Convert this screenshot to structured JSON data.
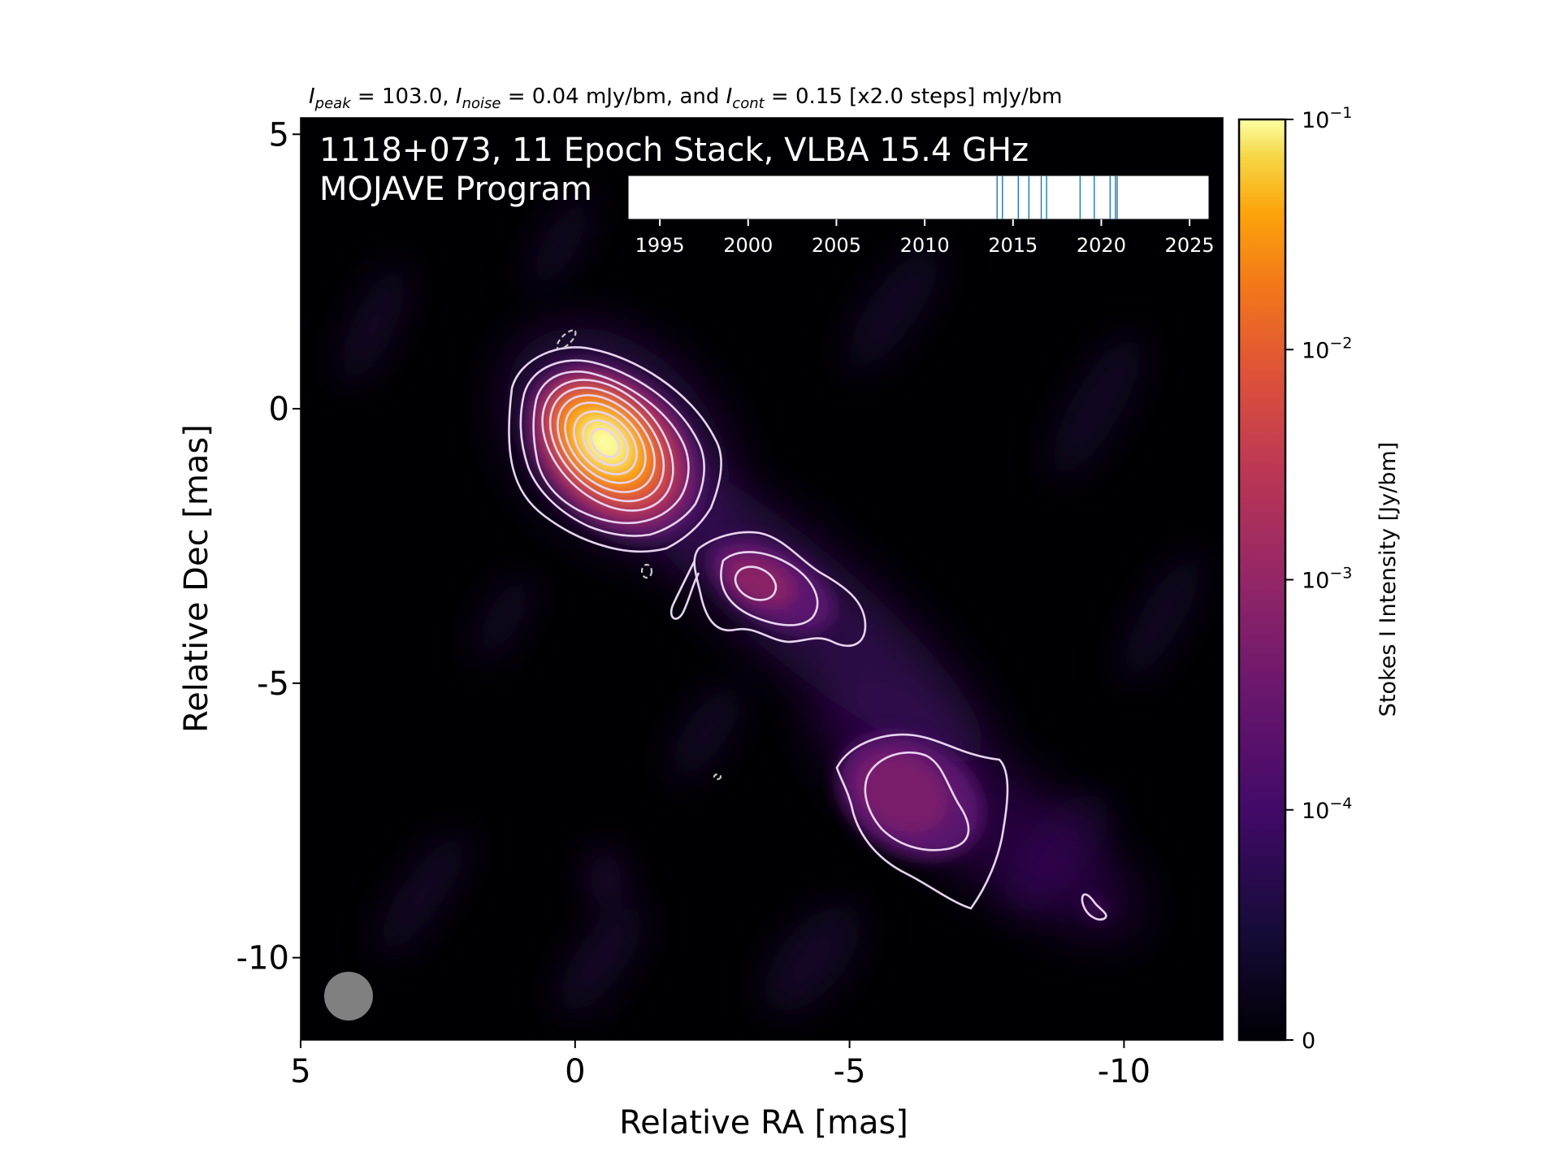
{
  "chart_data": {
    "type": "heatmap",
    "title_parts": {
      "i1": "I",
      "s1": "peak",
      "t1": " = 103.0, ",
      "i2": "I",
      "s2": "noise",
      "t2": " = 0.04 mJy/bm, and ",
      "i3": "I",
      "s3": "cont",
      "t3": " = 0.15 [x2.0 steps] mJy/bm"
    },
    "annotation_line1": "1118+073, 11 Epoch Stack, VLBA 15.4 GHz",
    "annotation_line2": "MOJAVE Program",
    "xlabel": "Relative RA [mas]",
    "ylabel": "Relative Dec [mas]",
    "xlim": [
      5,
      -11.8
    ],
    "ylim": [
      -11.5,
      5.3
    ],
    "xticks": [
      {
        "value": 5,
        "label": "5"
      },
      {
        "value": 0,
        "label": "0"
      },
      {
        "value": -5,
        "label": "-5"
      },
      {
        "value": -10,
        "label": "-10"
      }
    ],
    "yticks": [
      {
        "value": 5,
        "label": "5"
      },
      {
        "value": 0,
        "label": "0"
      },
      {
        "value": -5,
        "label": "-5"
      },
      {
        "value": -10,
        "label": "-10"
      }
    ],
    "colormap": "inferno",
    "colorbar": {
      "label": "Stokes I Intensity [Jy/bm]",
      "scale": "symlog",
      "ticks": [
        {
          "value": 0,
          "label_base": "0",
          "label_exp": ""
        },
        {
          "value": 0.0001,
          "label_base": "10",
          "label_exp": "−4"
        },
        {
          "value": 0.001,
          "label_base": "10",
          "label_exp": "−3"
        },
        {
          "value": 0.01,
          "label_base": "10",
          "label_exp": "−2"
        },
        {
          "value": 0.1,
          "label_base": "10",
          "label_exp": "−1"
        }
      ]
    },
    "peak_intensity_mJy_per_bm": 103.0,
    "noise_mJy_per_bm": 0.04,
    "lowest_contour_mJy_per_bm": 0.15,
    "contour_step_factor": 2.0,
    "components": [
      {
        "ra": -0.5,
        "dec": -0.6,
        "peak_Jy": 0.103
      },
      {
        "ra": -3.1,
        "dec": -3.1,
        "peak_Jy": 0.0012
      },
      {
        "ra": -5.8,
        "dec": -7.2,
        "peak_Jy": 0.00095
      },
      {
        "ra": -9.3,
        "dec": -9.0,
        "peak_Jy": 0.0002
      }
    ],
    "beam": {
      "ra": 4.3,
      "dec": -10.6,
      "major_mas": 1.1,
      "minor_mas": 1.1
    },
    "epoch_timeline": {
      "xlim": [
        1993.2,
        2026.1
      ],
      "ticks": [
        {
          "value": 1995,
          "label": "1995"
        },
        {
          "value": 2000,
          "label": "2000"
        },
        {
          "value": 2005,
          "label": "2005"
        },
        {
          "value": 2010,
          "label": "2010"
        },
        {
          "value": 2015,
          "label": "2015"
        },
        {
          "value": 2020,
          "label": "2020"
        },
        {
          "value": 2025,
          "label": "2025"
        }
      ],
      "epochs": [
        2014.1,
        2014.4,
        2015.3,
        2015.9,
        2016.6,
        2016.9,
        2018.8,
        2019.6,
        2020.5,
        2020.8,
        2020.9
      ],
      "epoch_line_color": "#1f77b4"
    }
  },
  "colors": {
    "background": "#000004",
    "contour": "#e8d4f0",
    "beam": "#808080",
    "axis_text": "#000000"
  }
}
